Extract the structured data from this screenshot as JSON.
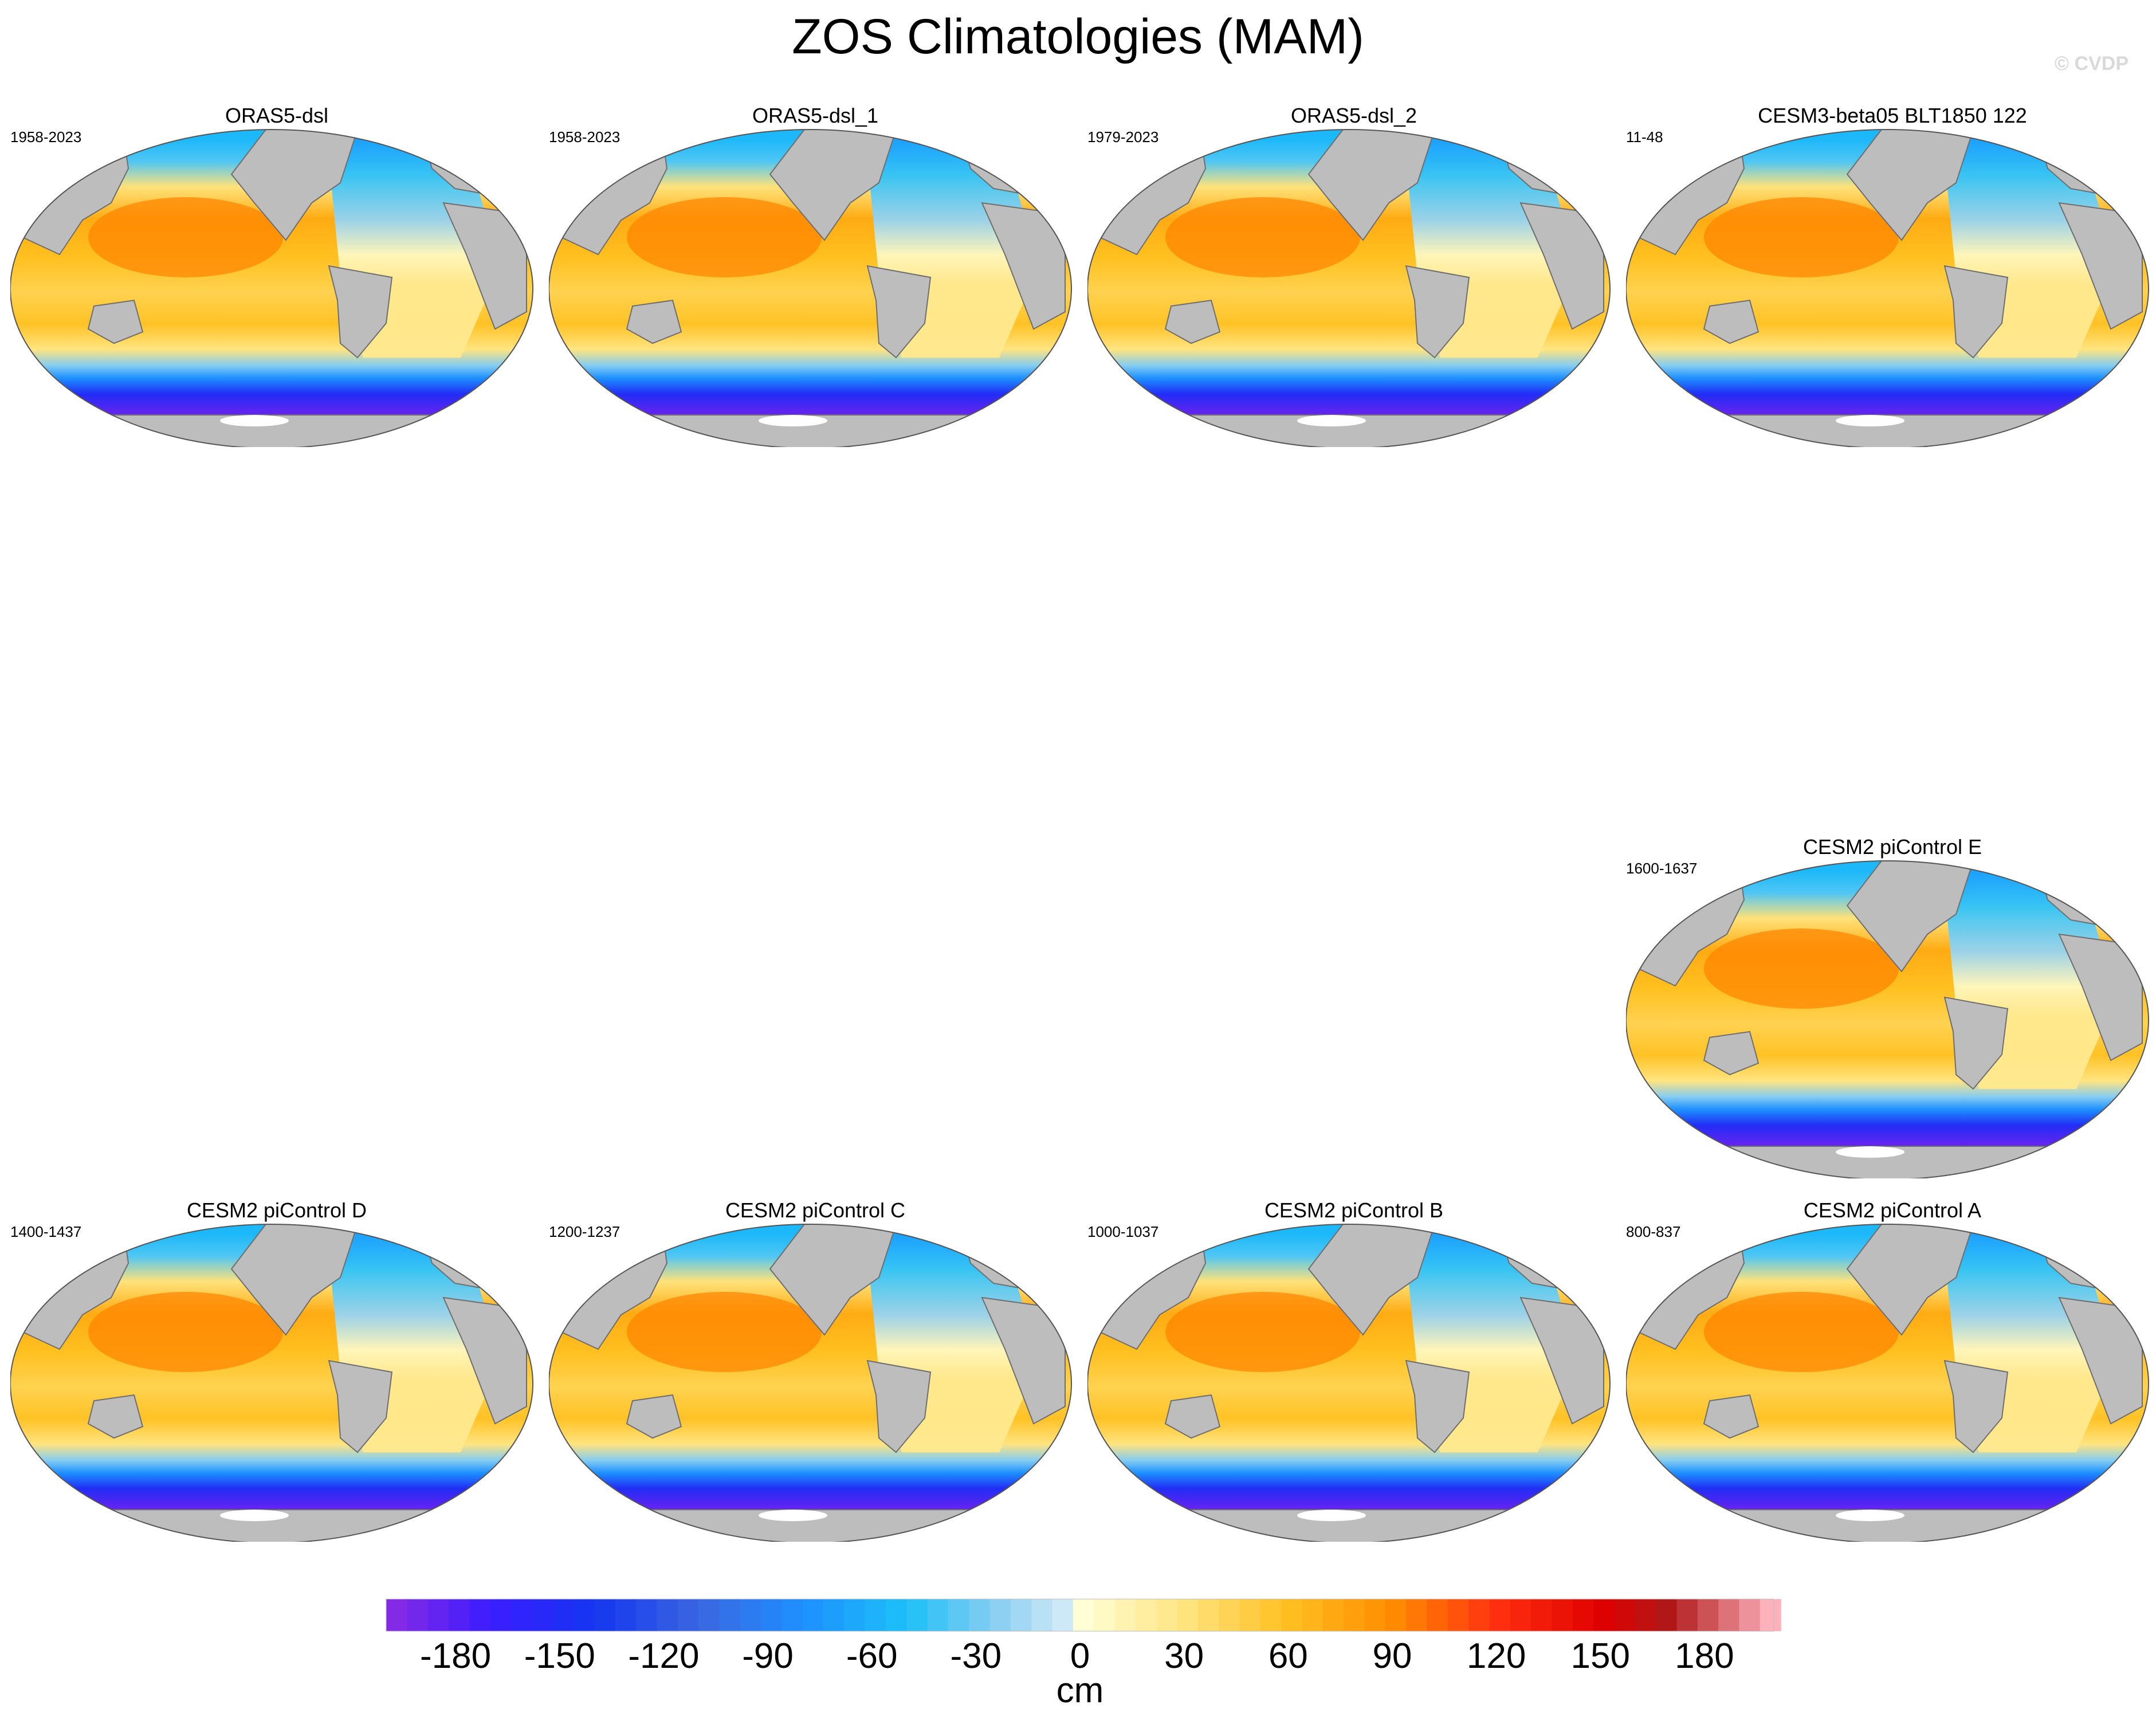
{
  "title": "ZOS Climatologies (MAM)",
  "watermark": "© CVDP",
  "colors": {
    "land": "#bdbdbd",
    "coast": "#6e6e6e",
    "ice": "#ffffff"
  },
  "chart_data": {
    "type": "heatmap",
    "title": "ZOS Climatologies (MAM)",
    "panels": [
      {
        "name": "ORAS5-dsl",
        "years": "1958-2023",
        "row": 0,
        "col": 0
      },
      {
        "name": "ORAS5-dsl_1",
        "years": "1958-2023",
        "row": 0,
        "col": 1
      },
      {
        "name": "ORAS5-dsl_2",
        "years": "1979-2023",
        "row": 0,
        "col": 2
      },
      {
        "name": "CESM3-beta05 BLT1850 122",
        "years": "11-48",
        "row": 0,
        "col": 3
      },
      {
        "name": "CESM2 piControl E",
        "years": "1600-1637",
        "row": 2,
        "col": 3
      },
      {
        "name": "CESM2 piControl D",
        "years": "1400-1437",
        "row": 3,
        "col": 0
      },
      {
        "name": "CESM2 piControl C",
        "years": "1200-1237",
        "row": 3,
        "col": 1
      },
      {
        "name": "CESM2 piControl B",
        "years": "1000-1037",
        "row": 3,
        "col": 2
      },
      {
        "name": "CESM2 piControl A",
        "years": "800-837",
        "row": 3,
        "col": 3
      }
    ],
    "colorbar": {
      "units": "cm",
      "min": -200,
      "max": 200,
      "step": 6,
      "tick_values": [
        -180,
        -150,
        -120,
        -90,
        -60,
        -30,
        0,
        30,
        60,
        90,
        120,
        150,
        180
      ],
      "tick_labels": [
        "-180",
        "-150",
        "-120",
        "-90",
        "-60",
        "-30",
        "0",
        "30",
        "60",
        "90",
        "120",
        "150",
        "180"
      ],
      "stops": [
        {
          "v": -200,
          "c": "#8a2be2"
        },
        {
          "v": -170,
          "c": "#3b1cff"
        },
        {
          "v": -140,
          "c": "#1436f0"
        },
        {
          "v": -110,
          "c": "#3a66e0"
        },
        {
          "v": -80,
          "c": "#1e90ff"
        },
        {
          "v": -50,
          "c": "#1cc0f8"
        },
        {
          "v": -25,
          "c": "#86cdf0"
        },
        {
          "v": -3,
          "c": "#d4ecf8"
        },
        {
          "v": 0,
          "c": "#ffffd8"
        },
        {
          "v": 30,
          "c": "#ffe480"
        },
        {
          "v": 60,
          "c": "#ffc020"
        },
        {
          "v": 90,
          "c": "#ff8c00"
        },
        {
          "v": 120,
          "c": "#ff3010"
        },
        {
          "v": 150,
          "c": "#e00000"
        },
        {
          "v": 170,
          "c": "#b01818"
        },
        {
          "v": 200,
          "c": "#ffb6c1"
        }
      ]
    }
  }
}
